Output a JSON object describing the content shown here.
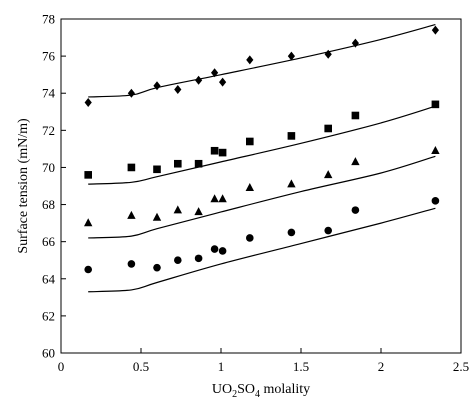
{
  "chart_data": {
    "type": "scatter",
    "title": "",
    "xlabel": {
      "main": "UO",
      "sub1": "2",
      "mid": "SO",
      "sub2": "4",
      "tail": " molality"
    },
    "ylabel": "Surface tension (mN/m)",
    "xlim": [
      0,
      2.5
    ],
    "ylim": [
      60,
      78
    ],
    "xticks": [
      "0",
      "0.5",
      "1",
      "1.5",
      "2",
      "2.5"
    ],
    "yticks": [
      "60",
      "62",
      "64",
      "66",
      "68",
      "70",
      "72",
      "74",
      "76",
      "78"
    ],
    "xtick_values": [
      0,
      0.5,
      1,
      1.5,
      2,
      2.5
    ],
    "ytick_values": [
      60,
      62,
      64,
      66,
      68,
      70,
      72,
      74,
      76,
      78
    ],
    "grid": false,
    "legend": "none",
    "colors": {
      "marks": "#000000",
      "background": "#ffffff"
    },
    "series": [
      {
        "marker": "diamond",
        "points": [
          {
            "x": 0.17,
            "y": 73.5
          },
          {
            "x": 0.44,
            "y": 74.0
          },
          {
            "x": 0.6,
            "y": 74.4
          },
          {
            "x": 0.73,
            "y": 74.2
          },
          {
            "x": 0.86,
            "y": 74.7
          },
          {
            "x": 0.96,
            "y": 75.1
          },
          {
            "x": 1.01,
            "y": 74.6
          },
          {
            "x": 1.18,
            "y": 75.8
          },
          {
            "x": 1.44,
            "y": 76.0
          },
          {
            "x": 1.67,
            "y": 76.1
          },
          {
            "x": 1.84,
            "y": 76.7
          },
          {
            "x": 2.34,
            "y": 77.4
          }
        ],
        "model_curve": [
          {
            "x": 0.17,
            "y": 73.8
          },
          {
            "x": 0.44,
            "y": 73.9
          },
          {
            "x": 0.6,
            "y": 74.3
          },
          {
            "x": 1.0,
            "y": 75.0
          },
          {
            "x": 1.5,
            "y": 75.9
          },
          {
            "x": 2.0,
            "y": 76.9
          },
          {
            "x": 2.34,
            "y": 77.7
          }
        ]
      },
      {
        "marker": "square",
        "points": [
          {
            "x": 0.17,
            "y": 69.6
          },
          {
            "x": 0.44,
            "y": 70.0
          },
          {
            "x": 0.6,
            "y": 69.9
          },
          {
            "x": 0.73,
            "y": 70.2
          },
          {
            "x": 0.86,
            "y": 70.2
          },
          {
            "x": 0.96,
            "y": 70.9
          },
          {
            "x": 1.01,
            "y": 70.8
          },
          {
            "x": 1.18,
            "y": 71.4
          },
          {
            "x": 1.44,
            "y": 71.7
          },
          {
            "x": 1.67,
            "y": 72.1
          },
          {
            "x": 1.84,
            "y": 72.8
          },
          {
            "x": 2.34,
            "y": 73.4
          }
        ],
        "model_curve": [
          {
            "x": 0.17,
            "y": 69.1
          },
          {
            "x": 0.44,
            "y": 69.2
          },
          {
            "x": 0.6,
            "y": 69.5
          },
          {
            "x": 1.0,
            "y": 70.3
          },
          {
            "x": 1.5,
            "y": 71.3
          },
          {
            "x": 2.0,
            "y": 72.4
          },
          {
            "x": 2.34,
            "y": 73.3
          }
        ]
      },
      {
        "marker": "triangle",
        "points": [
          {
            "x": 0.17,
            "y": 67.0
          },
          {
            "x": 0.44,
            "y": 67.4
          },
          {
            "x": 0.6,
            "y": 67.3
          },
          {
            "x": 0.73,
            "y": 67.7
          },
          {
            "x": 0.86,
            "y": 67.6
          },
          {
            "x": 0.96,
            "y": 68.3
          },
          {
            "x": 1.01,
            "y": 68.3
          },
          {
            "x": 1.18,
            "y": 68.9
          },
          {
            "x": 1.44,
            "y": 69.1
          },
          {
            "x": 1.67,
            "y": 69.6
          },
          {
            "x": 1.84,
            "y": 70.3
          },
          {
            "x": 2.34,
            "y": 70.9
          }
        ],
        "model_curve": [
          {
            "x": 0.17,
            "y": 66.2
          },
          {
            "x": 0.44,
            "y": 66.3
          },
          {
            "x": 0.6,
            "y": 66.7
          },
          {
            "x": 1.0,
            "y": 67.6
          },
          {
            "x": 1.5,
            "y": 68.7
          },
          {
            "x": 2.0,
            "y": 69.7
          },
          {
            "x": 2.34,
            "y": 70.6
          }
        ]
      },
      {
        "marker": "circle",
        "points": [
          {
            "x": 0.17,
            "y": 64.5
          },
          {
            "x": 0.44,
            "y": 64.8
          },
          {
            "x": 0.6,
            "y": 64.6
          },
          {
            "x": 0.73,
            "y": 65.0
          },
          {
            "x": 0.86,
            "y": 65.1
          },
          {
            "x": 0.96,
            "y": 65.6
          },
          {
            "x": 1.01,
            "y": 65.5
          },
          {
            "x": 1.18,
            "y": 66.2
          },
          {
            "x": 1.44,
            "y": 66.5
          },
          {
            "x": 1.67,
            "y": 66.6
          },
          {
            "x": 1.84,
            "y": 67.7
          },
          {
            "x": 2.34,
            "y": 68.2
          }
        ],
        "model_curve": [
          {
            "x": 0.17,
            "y": 63.3
          },
          {
            "x": 0.44,
            "y": 63.4
          },
          {
            "x": 0.6,
            "y": 63.8
          },
          {
            "x": 1.0,
            "y": 64.8
          },
          {
            "x": 1.5,
            "y": 65.9
          },
          {
            "x": 2.0,
            "y": 67.0
          },
          {
            "x": 2.34,
            "y": 67.8
          }
        ]
      }
    ]
  }
}
